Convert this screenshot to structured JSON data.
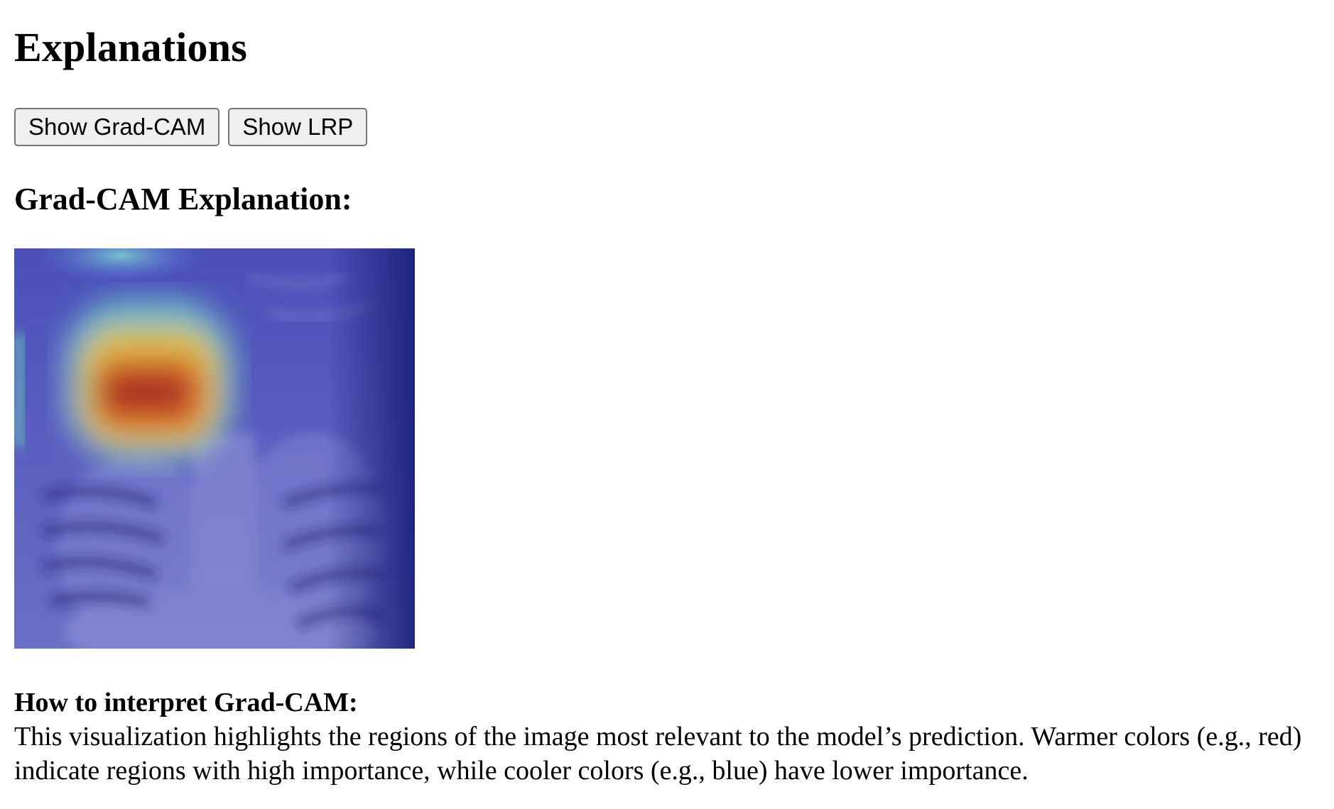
{
  "page": {
    "title": "Explanations"
  },
  "buttons": {
    "gradcam_label": "Show Grad-CAM",
    "lrp_label": "Show LRP"
  },
  "section": {
    "title": "Grad-CAM Explanation:"
  },
  "image": {
    "description_icon": "chest-xray-gradcam-heatmap",
    "colors": {
      "overlay_base": "#3b3fa0",
      "hot": "#c0392b",
      "warm": "#f1c40f",
      "cool": "#7fe0c0"
    }
  },
  "interpretation": {
    "label": "How to interpret Grad-CAM:",
    "text": "This visualization highlights the regions of the image most relevant to the model’s prediction. Warmer colors (e.g., red) indicate regions with high importance, while cooler colors (e.g., blue) have lower importance."
  }
}
